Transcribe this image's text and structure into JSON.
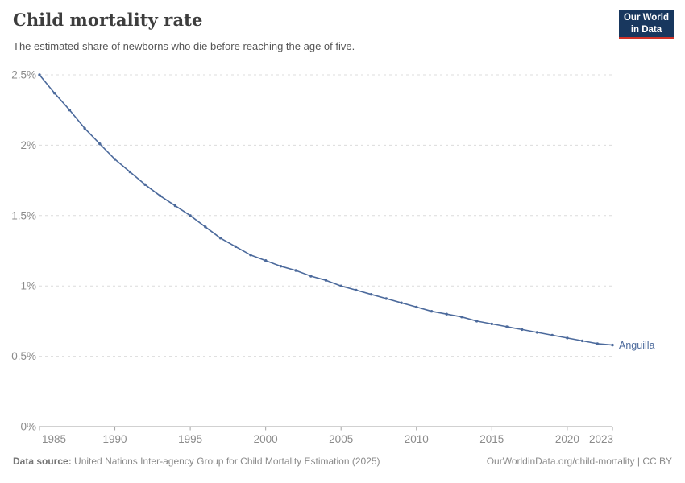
{
  "header": {
    "title": "Child mortality rate",
    "subtitle": "The estimated share of newborns who die before reaching the age of five.",
    "logo": {
      "line1": "Our World",
      "line2": "in Data"
    }
  },
  "footer": {
    "datasource_label": "Data source:",
    "datasource_text": "United Nations Inter-agency Group for Child Mortality Estimation (2025)",
    "credit": "OurWorldinData.org/child-mortality | CC BY"
  },
  "colors": {
    "line": "#4c6a9c",
    "logo_navy": "#18375e",
    "logo_red": "#d13328",
    "grid": "#dcdcdc",
    "axis": "#a3a3a3",
    "tick_label": "#8b8b8b",
    "title": "#3d3d3d",
    "subtitle": "#565656",
    "footer": "#8a8a8a",
    "footer_bold": "#757575"
  },
  "chart_data": {
    "type": "line",
    "title": "Child mortality rate",
    "subtitle": "The estimated share of newborns who die before reaching the age of five.",
    "xlabel": "",
    "ylabel": "",
    "xlim": [
      1985,
      2023
    ],
    "ylim": [
      0,
      2.5
    ],
    "grid": "horizontal-dashed",
    "legend_position": "end-of-line-label",
    "x_ticks": [
      1985,
      1990,
      1995,
      2000,
      2005,
      2010,
      2015,
      2020,
      2023
    ],
    "y_ticks": [
      {
        "value": 0,
        "label": "0%"
      },
      {
        "value": 0.5,
        "label": "0.5%"
      },
      {
        "value": 1,
        "label": "1%"
      },
      {
        "value": 1.5,
        "label": "1.5%"
      },
      {
        "value": 2,
        "label": "2%"
      },
      {
        "value": 2.5,
        "label": "2.5%"
      }
    ],
    "series": [
      {
        "name": "Anguilla",
        "unit": "%",
        "years": [
          1985,
          1986,
          1987,
          1988,
          1989,
          1990,
          1991,
          1992,
          1993,
          1994,
          1995,
          1996,
          1997,
          1998,
          1999,
          2000,
          2001,
          2002,
          2003,
          2004,
          2005,
          2006,
          2007,
          2008,
          2009,
          2010,
          2011,
          2012,
          2013,
          2014,
          2015,
          2016,
          2017,
          2018,
          2019,
          2020,
          2021,
          2022,
          2023
        ],
        "values": [
          2.5,
          2.37,
          2.25,
          2.12,
          2.01,
          1.9,
          1.81,
          1.72,
          1.64,
          1.57,
          1.5,
          1.42,
          1.34,
          1.28,
          1.22,
          1.18,
          1.14,
          1.11,
          1.07,
          1.04,
          1.0,
          0.97,
          0.94,
          0.91,
          0.88,
          0.85,
          0.82,
          0.8,
          0.78,
          0.75,
          0.73,
          0.71,
          0.69,
          0.67,
          0.65,
          0.63,
          0.61,
          0.59,
          0.58
        ]
      }
    ]
  }
}
